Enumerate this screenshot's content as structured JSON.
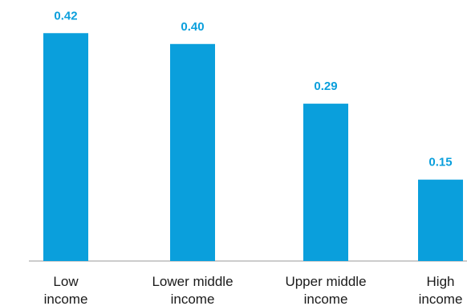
{
  "chart_data": {
    "type": "bar",
    "categories": [
      [
        "Low",
        "income"
      ],
      [
        "Lower middle",
        "income"
      ],
      [
        "Upper middle",
        "income"
      ],
      [
        "High",
        "income"
      ]
    ],
    "values": [
      0.42,
      0.4,
      0.29,
      0.15
    ],
    "value_labels": [
      "0.42",
      "0.40",
      "0.29",
      "0.15"
    ],
    "ylim": [
      0,
      0.45
    ],
    "grid": false,
    "legend": "none",
    "colors": {
      "bar": "#0a9fdc",
      "value_label": "#0a9fdc",
      "axis": "#9a9a9a",
      "text": "#1a1a1a"
    }
  }
}
